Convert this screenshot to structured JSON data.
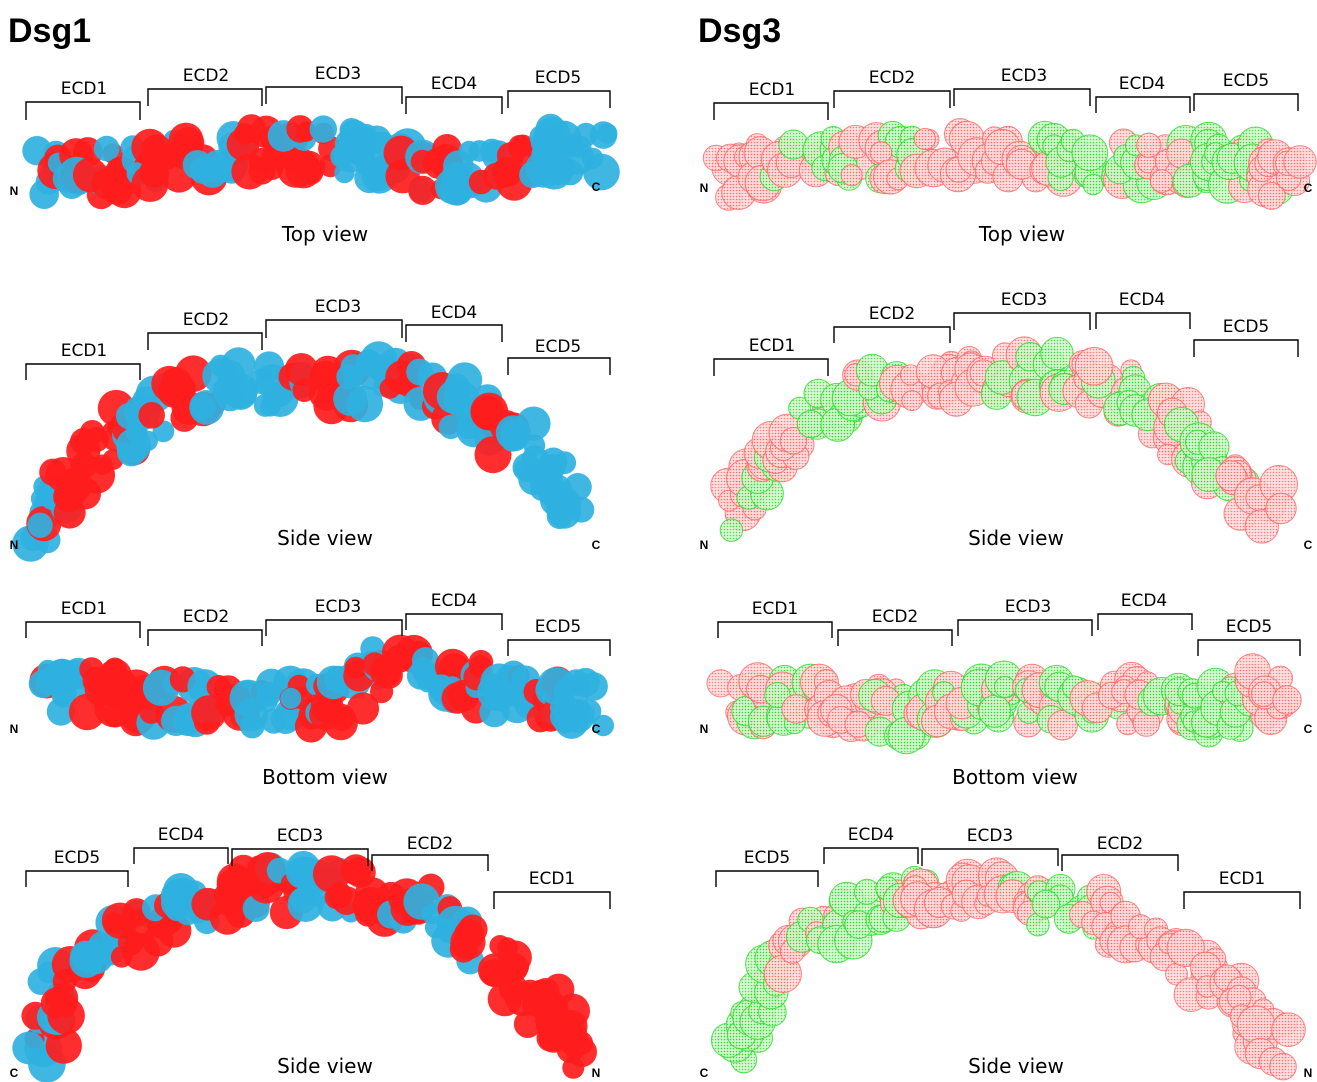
{
  "colors": {
    "dsg1_a": "#ff1c1c",
    "dsg1_b": "#2fb1e0",
    "dsg3_a": "#ff6a6a",
    "dsg3_b": "#33dd33",
    "dsg3_a_fill": "#ffd2d2",
    "dsg3_b_fill": "#c6f6c0"
  },
  "panels": [
    {
      "title": "Dsg1",
      "style": "solid",
      "views": [
        {
          "label": "Top view",
          "left_terminus": "N",
          "right_terminus": "C",
          "domains": [
            "ECD1",
            "ECD2",
            "ECD3",
            "ECD4",
            "ECD5"
          ],
          "pattern": [
            "b",
            "a",
            "b",
            "a",
            "b",
            "a",
            "a",
            "b",
            "b",
            "a",
            "b",
            "a",
            "b",
            "b"
          ]
        },
        {
          "label": "Side view",
          "left_terminus": "N",
          "right_terminus": "C",
          "domains": [
            "ECD1",
            "ECD2",
            "ECD3",
            "ECD4",
            "ECD5"
          ],
          "pattern": [
            "b",
            "a",
            "a",
            "b",
            "a",
            "b",
            "b",
            "a",
            "b",
            "a",
            "b",
            "a",
            "b",
            "b"
          ]
        },
        {
          "label": "Bottom view",
          "left_terminus": "N",
          "right_terminus": "C",
          "domains": [
            "ECD1",
            "ECD2",
            "ECD3",
            "ECD4",
            "ECD5"
          ],
          "pattern": [
            "b",
            "a",
            "a",
            "b",
            "a",
            "b",
            "a",
            "b",
            "a",
            "b",
            "a",
            "b",
            "a",
            "b"
          ]
        },
        {
          "label": "Side view",
          "left_terminus": "C",
          "right_terminus": "N",
          "domains": [
            "ECD5",
            "ECD4",
            "ECD3",
            "ECD2",
            "ECD1"
          ],
          "pattern": [
            "b",
            "a",
            "b",
            "a",
            "b",
            "a",
            "a",
            "b",
            "a",
            "a",
            "b",
            "a",
            "a",
            "a"
          ]
        }
      ]
    },
    {
      "title": "Dsg3",
      "style": "dotted",
      "views": [
        {
          "label": "Top view",
          "left_terminus": "N",
          "right_terminus": "C",
          "domains": [
            "ECD1",
            "ECD2",
            "ECD3",
            "ECD4",
            "ECD5"
          ],
          "pattern": [
            "a",
            "a",
            "b",
            "a",
            "b",
            "a",
            "a",
            "a",
            "b",
            "b",
            "a",
            "b",
            "b",
            "a"
          ]
        },
        {
          "label": "Side view",
          "left_terminus": "N",
          "right_terminus": "C",
          "domains": [
            "ECD1",
            "ECD2",
            "ECD3",
            "ECD4",
            "ECD5"
          ],
          "pattern": [
            "a",
            "b",
            "a",
            "b",
            "b",
            "a",
            "a",
            "a",
            "b",
            "a",
            "b",
            "a",
            "b",
            "a"
          ]
        },
        {
          "label": "Bottom view",
          "left_terminus": "N",
          "right_terminus": "C",
          "domains": [
            "ECD1",
            "ECD2",
            "ECD3",
            "ECD4",
            "ECD5"
          ],
          "pattern": [
            "a",
            "b",
            "a",
            "a",
            "b",
            "a",
            "b",
            "a",
            "b",
            "a",
            "a",
            "b",
            "b",
            "a"
          ]
        },
        {
          "label": "Side view",
          "left_terminus": "C",
          "right_terminus": "N",
          "domains": [
            "ECD5",
            "ECD4",
            "ECD3",
            "ECD2",
            "ECD1"
          ],
          "pattern": [
            "b",
            "b",
            "a",
            "b",
            "b",
            "a",
            "a",
            "a",
            "b",
            "a",
            "a",
            "a",
            "a",
            "a"
          ]
        }
      ]
    }
  ]
}
